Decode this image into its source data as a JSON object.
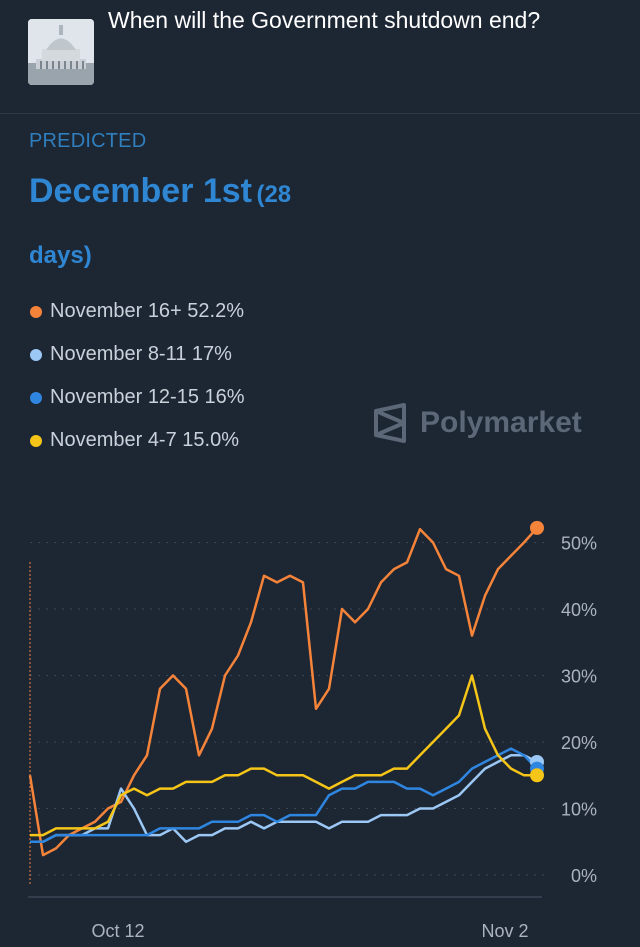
{
  "market": {
    "title": "When will the Government shutdown end?"
  },
  "prediction": {
    "label": "PREDICTED",
    "date": "December 1st",
    "days": "(28 days)"
  },
  "brand": {
    "name": "Polymarket"
  },
  "legend": [
    {
      "label": "November 16+ 52.2%",
      "color": "#f5843a"
    },
    {
      "label": "November 8-11 17%",
      "color": "#9cc8f5"
    },
    {
      "label": "November 12-15 16%",
      "color": "#2f86e0"
    },
    {
      "label": "November 4-7 15.0%",
      "color": "#f5c518"
    }
  ],
  "chart_data": {
    "type": "line",
    "x_ticks": [
      "Oct 12",
      "Nov 2"
    ],
    "y_ticks": [
      "0%",
      "10%",
      "20%",
      "30%",
      "40%",
      "50%"
    ],
    "ylim": [
      0,
      52
    ],
    "grid": true,
    "series": [
      {
        "name": "November 16+",
        "color": "#f5843a",
        "values": [
          15,
          3,
          4,
          6,
          7,
          8,
          10,
          11,
          15,
          18,
          28,
          30,
          28,
          18,
          22,
          30,
          33,
          38,
          45,
          44,
          45,
          44,
          25,
          28,
          40,
          38,
          40,
          44,
          46,
          47,
          52,
          50,
          46,
          45,
          36,
          42,
          46,
          48,
          50,
          52.2
        ]
      },
      {
        "name": "November 8-11",
        "color": "#9cc8f5",
        "values": [
          5,
          5,
          6,
          6,
          6,
          7,
          7,
          13,
          10,
          6,
          6,
          7,
          5,
          6,
          6,
          7,
          7,
          8,
          7,
          8,
          8,
          8,
          8,
          7,
          8,
          8,
          8,
          9,
          9,
          9,
          10,
          10,
          11,
          12,
          14,
          16,
          17,
          18,
          18,
          17
        ]
      },
      {
        "name": "November 12-15",
        "color": "#2f86e0",
        "values": [
          5,
          5,
          6,
          6,
          6,
          6,
          6,
          6,
          6,
          6,
          7,
          7,
          7,
          7,
          8,
          8,
          8,
          9,
          9,
          8,
          9,
          9,
          9,
          12,
          13,
          13,
          14,
          14,
          14,
          13,
          13,
          12,
          13,
          14,
          16,
          17,
          18,
          19,
          18,
          16
        ]
      },
      {
        "name": "November 4-7",
        "color": "#f5c518",
        "values": [
          6,
          6,
          7,
          7,
          7,
          7,
          8,
          12,
          13,
          12,
          13,
          13,
          14,
          14,
          14,
          15,
          15,
          16,
          16,
          15,
          15,
          15,
          14,
          13,
          14,
          15,
          15,
          15,
          16,
          16,
          18,
          20,
          22,
          24,
          30,
          22,
          18,
          16,
          15,
          15
        ]
      }
    ]
  }
}
